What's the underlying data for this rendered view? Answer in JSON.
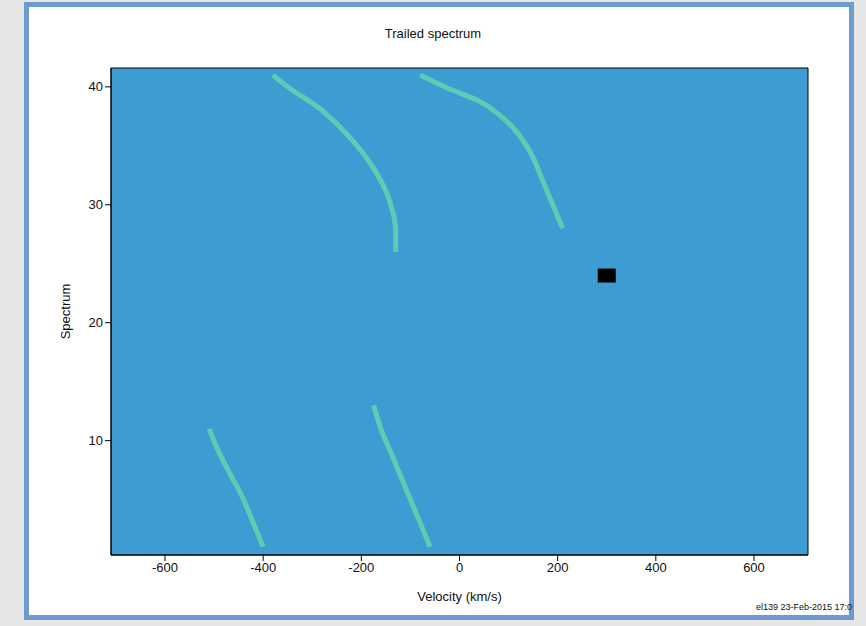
{
  "chart_data": {
    "type": "line",
    "title": "Trailed spectrum",
    "xlabel": "Velocity (km/s)",
    "ylabel": "Spectrum",
    "annotation": "el139 23-Feb-2015 17:0",
    "xlim": [
      -710,
      710
    ],
    "xticks": [
      -600,
      -400,
      -200,
      0,
      200,
      400,
      600
    ],
    "ylim": [
      0.3,
      41.6
    ],
    "yticks": [
      10,
      20,
      30,
      40
    ],
    "series": [
      {
        "color": "#62d6ad",
        "line_style": "solid",
        "x": [
          -400,
          -420,
          -440,
          -465,
          -490,
          -510
        ],
        "values": [
          1,
          3,
          5,
          7,
          9,
          11
        ]
      },
      {
        "color": "#62d6ad",
        "line_style": "solid",
        "x": [
          -130,
          -130,
          -140,
          -160,
          -190,
          -230,
          -280,
          -350,
          -380
        ],
        "values": [
          26,
          28,
          30,
          32,
          34,
          36,
          38,
          40,
          41
        ]
      },
      {
        "color": "#62d6ad",
        "line_style": "solid",
        "x": [
          -60,
          -80,
          -100,
          -120,
          -140,
          -160,
          -175
        ],
        "values": [
          1,
          3,
          5,
          7,
          9,
          11,
          13
        ]
      },
      {
        "color": "#62d6ad",
        "line_style": "solid",
        "x": [
          210,
          190,
          170,
          150,
          120,
          70,
          -30,
          -80
        ],
        "values": [
          28,
          30,
          32,
          34,
          36,
          38,
          40,
          41
        ]
      },
      {
        "type": "scatter",
        "marker": "square",
        "color": "#000000",
        "x": [
          300
        ],
        "values": [
          24
        ]
      }
    ]
  }
}
